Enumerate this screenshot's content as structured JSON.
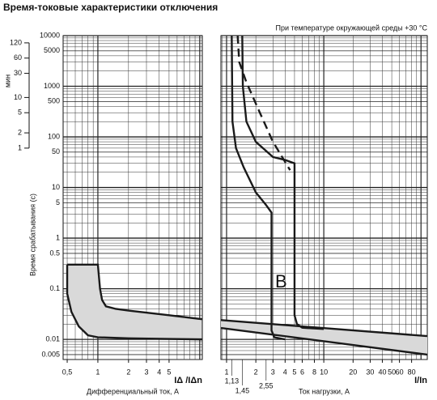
{
  "title": "Время-токовые характеристики отключения",
  "chart_data": [
    {
      "type": "line",
      "log_x": true,
      "log_y": true,
      "grid": true,
      "show_ytick_labels": true,
      "xlabel": "Дифференциальный ток, A",
      "x_symbol": "IΔ /IΔn",
      "ylabel": "Время срабатывания (с)",
      "y2label": "мин",
      "xlim": [
        0.456,
        10.6
      ],
      "ylim": [
        0.004,
        10000
      ],
      "xticks": [
        {
          "value": 0.5,
          "label": "0,5"
        },
        1,
        2,
        3,
        4,
        5
      ],
      "yticks": [
        10000,
        5000,
        1000,
        500,
        100,
        50,
        10,
        5,
        1,
        0.5,
        0.1,
        0.01,
        0.005
      ],
      "y2lim": [
        6.67e-05,
        166.667
      ],
      "y2ticks": [
        120,
        60,
        30,
        10,
        5,
        2,
        1
      ],
      "band_fill": "#d9d9d9",
      "series": [
        {
          "color": "#1a1a1a",
          "x": [
            0.5,
            1.0,
            1.05,
            1.1,
            1.2,
            1.5,
            2,
            5,
            10.5
          ],
          "values": [
            0.3,
            0.3,
            0.1,
            0.06,
            0.045,
            0.04,
            0.037,
            0.03,
            0.025
          ]
        },
        {
          "color": "#1a1a1a",
          "x": [
            0.5,
            0.5,
            0.55,
            0.65,
            0.8,
            1,
            2,
            5,
            10.5
          ],
          "values": [
            0.3,
            0.08,
            0.035,
            0.018,
            0.012,
            0.011,
            0.0105,
            0.0102,
            0.01
          ]
        }
      ]
    },
    {
      "type": "line",
      "log_x": true,
      "log_y": true,
      "grid": true,
      "show_ytick_labels": false,
      "subtitle": "При температуре окружающей среды +30 °C",
      "xlabel": "Ток нагрузки, A",
      "x_symbol": "I/In",
      "annotation": "B",
      "xlim": [
        0.875,
        116
      ],
      "ylim": [
        0.004,
        10000
      ],
      "xticks": [
        1,
        2,
        3,
        4,
        5,
        6,
        8,
        10,
        20,
        30,
        40,
        50,
        60,
        80
      ],
      "xmarks": [
        {
          "value": 1.13,
          "label": "1,13"
        },
        {
          "value": 1.45,
          "label": "1,45"
        },
        {
          "value": 2.55,
          "label": "2,55"
        }
      ],
      "yticks": [
        10000,
        5000,
        1000,
        500,
        100,
        50,
        10,
        5,
        1,
        0.5,
        0.1,
        0.01,
        0.005
      ],
      "band_fill": "#d9d9d9",
      "series": [
        {
          "color": "#1a1a1a",
          "x": [
            0.875,
            116
          ],
          "values": [
            0.024,
            0.0116
          ]
        },
        {
          "color": "#1a1a1a",
          "x": [
            0.875,
            116
          ],
          "values": [
            0.0168,
            0.005
          ]
        },
        {
          "color": "#1a1a1a",
          "x": [
            1.13,
            1.15,
            1.25,
            1.5,
            2,
            2.55,
            2.9,
            2.9,
            3.1,
            4
          ],
          "values": [
            10000,
            200,
            60,
            25,
            8,
            4.5,
            3.2,
            0.015,
            0.011,
            0.01
          ]
        },
        {
          "color": "#1a1a1a",
          "x": [
            1.45,
            1.47,
            1.6,
            2,
            3,
            4,
            5,
            5,
            5.3,
            6,
            10
          ],
          "values": [
            10000,
            1000,
            200,
            80,
            40,
            35,
            30,
            0.03,
            0.02,
            0.017,
            0.016
          ]
        },
        {
          "color": "#1a1a1a",
          "dash": true,
          "x": [
            1.3,
            1.35,
            1.6,
            2.2,
            3,
            4.5
          ],
          "values": [
            10000,
            3000,
            1200,
            300,
            80,
            22
          ]
        }
      ]
    }
  ]
}
